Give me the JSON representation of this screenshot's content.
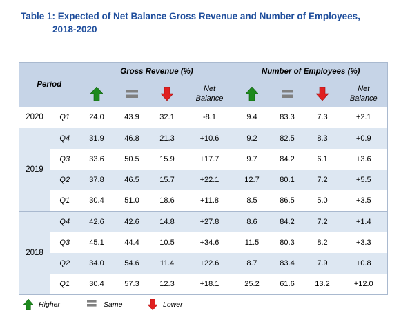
{
  "title": {
    "line1": "Table 1:  Expected of Net Balance Gross Revenue and Number of Employees,",
    "line2": "2018-2020"
  },
  "table": {
    "period_label": "Period",
    "group_revenue": "Gross Revenue (%)",
    "group_employees": "Number of Employees (%)",
    "net_balance_line1": "Net",
    "net_balance_line2": "Balance",
    "rows": [
      {
        "year": "2020",
        "q": "Q1",
        "v": [
          "24.0",
          "43.9",
          "32.1",
          "-8.1",
          "9.4",
          "83.3",
          "7.3",
          "+2.1"
        ]
      },
      {
        "year": "2019",
        "q": "Q4",
        "v": [
          "31.9",
          "46.8",
          "21.3",
          "+10.6",
          "9.2",
          "82.5",
          "8.3",
          "+0.9"
        ]
      },
      {
        "year": "",
        "q": "Q3",
        "v": [
          "33.6",
          "50.5",
          "15.9",
          "+17.7",
          "9.7",
          "84.2",
          "6.1",
          "+3.6"
        ]
      },
      {
        "year": "",
        "q": "Q2",
        "v": [
          "37.8",
          "46.5",
          "15.7",
          "+22.1",
          "12.7",
          "80.1",
          "7.2",
          "+5.5"
        ]
      },
      {
        "year": "",
        "q": "Q1",
        "v": [
          "30.4",
          "51.0",
          "18.6",
          "+11.8",
          "8.5",
          "86.5",
          "5.0",
          "+3.5"
        ]
      },
      {
        "year": "2018",
        "q": "Q4",
        "v": [
          "42.6",
          "42.6",
          "14.8",
          "+27.8",
          "8.6",
          "84.2",
          "7.2",
          "+1.4"
        ]
      },
      {
        "year": "",
        "q": "Q3",
        "v": [
          "45.1",
          "44.4",
          "10.5",
          "+34.6",
          "11.5",
          "80.3",
          "8.2",
          "+3.3"
        ]
      },
      {
        "year": "",
        "q": "Q2",
        "v": [
          "34.0",
          "54.6",
          "11.4",
          "+22.6",
          "8.7",
          "83.4",
          "7.9",
          "+0.8"
        ]
      },
      {
        "year": "",
        "q": "Q1",
        "v": [
          "30.4",
          "57.3",
          "12.3",
          "+18.1",
          "25.2",
          "61.6",
          "13.2",
          "+12.0"
        ]
      }
    ]
  },
  "legend": {
    "higher": "Higher",
    "same": "Same",
    "lower": "Lower"
  },
  "colors": {
    "higher": "#1e8a1e",
    "same": "#808080",
    "lower": "#e02020",
    "header_bg": "#c6d4e7",
    "shade_bg": "#dde7f2",
    "title": "#1f4e9c"
  },
  "icons": {
    "higher": "green-up-arrow-icon",
    "same": "gray-equals-icon",
    "lower": "red-down-arrow-icon"
  }
}
